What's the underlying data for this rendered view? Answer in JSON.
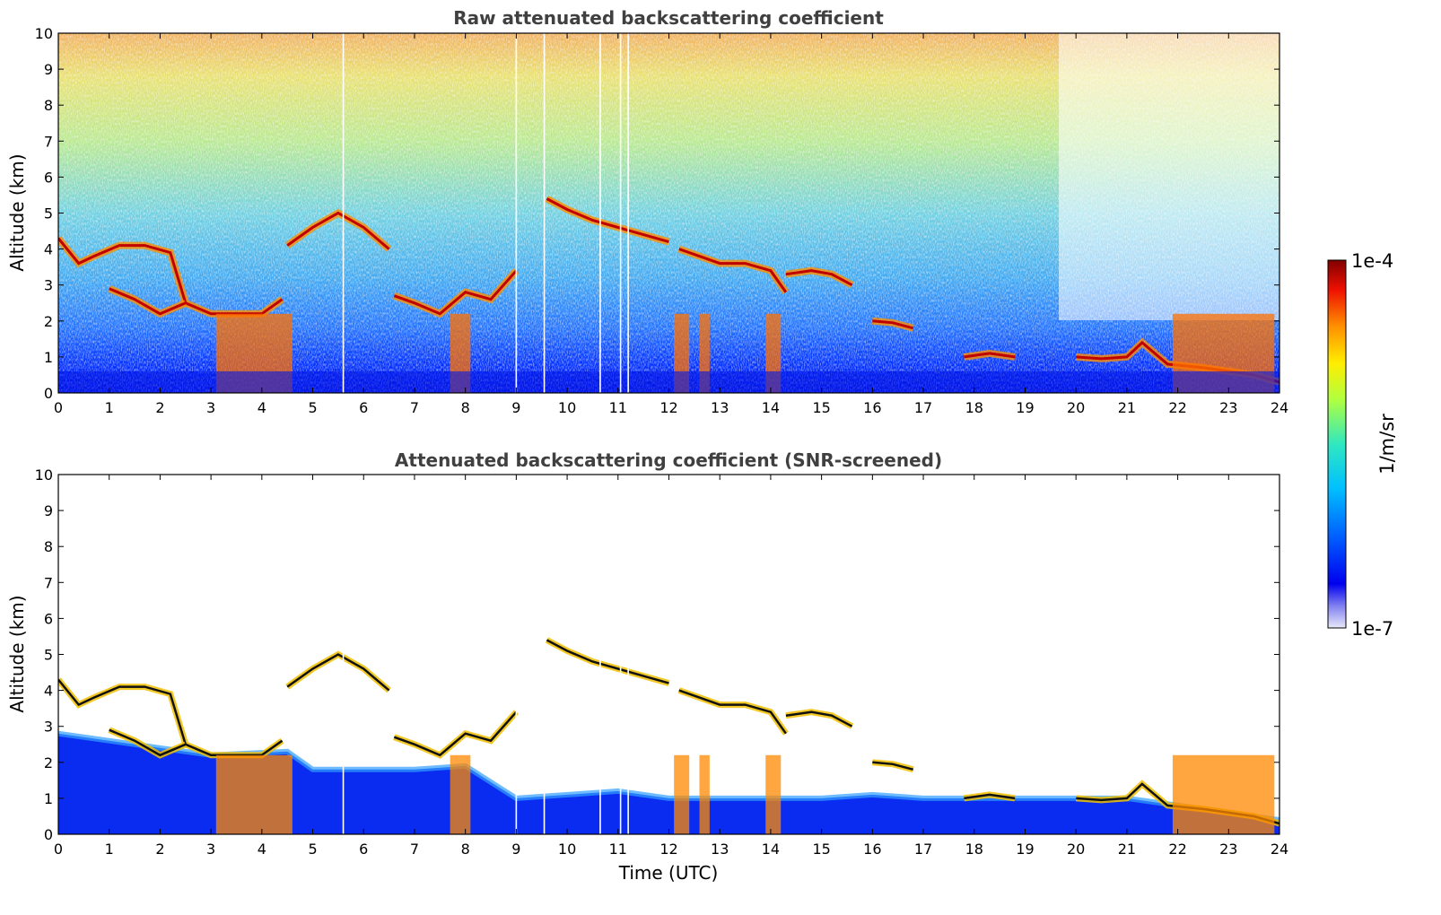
{
  "chart_data": [
    {
      "type": "heatmap",
      "title": "Raw attenuated backscattering coefficient",
      "xlabel": "",
      "ylabel": "Altitude (km)",
      "xlim": [
        0,
        24
      ],
      "ylim": [
        0,
        10
      ],
      "x_ticks": [
        "0",
        "1",
        "2",
        "3",
        "4",
        "5",
        "6",
        "7",
        "8",
        "9",
        "10",
        "11",
        "12",
        "13",
        "14",
        "15",
        "16",
        "17",
        "18",
        "19",
        "20",
        "21",
        "22",
        "23",
        "24"
      ],
      "y_ticks": [
        "0",
        "1",
        "2",
        "3",
        "4",
        "5",
        "6",
        "7",
        "8",
        "9",
        "10"
      ],
      "screened": false,
      "data_gaps_hours": [
        5.6,
        9.0,
        9.55,
        10.65,
        11.05,
        11.2
      ],
      "features": {
        "cloud_base_layers": [
          {
            "t": [
              0.0,
              0.4,
              0.7,
              1.2,
              1.7,
              2.2,
              2.5,
              3.0,
              3.5,
              4.0,
              4.4
            ],
            "alt": [
              4.3,
              3.6,
              3.8,
              4.1,
              4.1,
              3.9,
              2.5,
              2.2,
              2.2,
              2.2,
              2.6
            ]
          },
          {
            "t": [
              1.0,
              1.5,
              2.0,
              2.5
            ],
            "alt": [
              2.9,
              2.6,
              2.2,
              2.5
            ]
          },
          {
            "t": [
              4.5,
              5.0,
              5.5,
              6.0,
              6.5
            ],
            "alt": [
              4.1,
              4.6,
              5.0,
              4.6,
              4.0
            ]
          },
          {
            "t": [
              6.6,
              7.0,
              7.5,
              8.0,
              8.5,
              9.0
            ],
            "alt": [
              2.7,
              2.5,
              2.2,
              2.8,
              2.6,
              3.4
            ]
          },
          {
            "t": [
              9.6,
              10.0,
              10.5,
              11.0,
              11.5,
              12.0
            ],
            "alt": [
              5.4,
              5.1,
              4.8,
              4.6,
              4.4,
              4.2
            ]
          },
          {
            "t": [
              12.2,
              12.6,
              13.0,
              13.5,
              14.0,
              14.3
            ],
            "alt": [
              4.0,
              3.8,
              3.6,
              3.6,
              3.4,
              2.8
            ]
          },
          {
            "t": [
              14.3,
              14.8,
              15.2,
              15.6
            ],
            "alt": [
              3.3,
              3.4,
              3.3,
              3.0
            ]
          },
          {
            "t": [
              16.0,
              16.4,
              16.8
            ],
            "alt": [
              2.0,
              1.95,
              1.8
            ]
          },
          {
            "t": [
              17.8,
              18.3,
              18.8
            ],
            "alt": [
              1.0,
              1.1,
              1.0
            ]
          },
          {
            "t": [
              20.0,
              20.5,
              21.0,
              21.3,
              21.8,
              22.5,
              23.0,
              23.5,
              24.0
            ],
            "alt": [
              1.0,
              0.95,
              1.0,
              1.4,
              0.8,
              0.7,
              0.6,
              0.5,
              0.3
            ]
          }
        ],
        "precipitation_streaks_hours": [
          [
            3.1,
            4.6
          ],
          [
            7.7,
            8.1
          ],
          [
            12.1,
            12.4
          ],
          [
            12.6,
            12.8
          ],
          [
            13.9,
            14.2
          ],
          [
            21.9,
            23.9
          ]
        ]
      }
    },
    {
      "type": "heatmap",
      "title": "Attenuated backscattering coefficient (SNR-screened)",
      "xlabel": "Time (UTC)",
      "ylabel": "Altitude (km)",
      "xlim": [
        0,
        24
      ],
      "ylim": [
        0,
        10
      ],
      "x_ticks": [
        "0",
        "1",
        "2",
        "3",
        "4",
        "5",
        "6",
        "7",
        "8",
        "9",
        "10",
        "11",
        "12",
        "13",
        "14",
        "15",
        "16",
        "17",
        "18",
        "19",
        "20",
        "21",
        "22",
        "23",
        "24"
      ],
      "y_ticks": [
        "0",
        "1",
        "2",
        "3",
        "4",
        "5",
        "6",
        "7",
        "8",
        "9",
        "10"
      ],
      "screened": true,
      "data_gaps_hours": [
        5.6,
        9.0,
        9.55,
        10.65,
        11.05,
        11.2
      ],
      "features": {
        "boundary_layer_top_km": [
          {
            "t": [
              0,
              2,
              3,
              4.5,
              5,
              7,
              8,
              9,
              11,
              12,
              14,
              15,
              16,
              17,
              18,
              19,
              20,
              21,
              22,
              23,
              24
            ],
            "alt": [
              2.8,
              2.4,
              2.2,
              2.3,
              1.8,
              1.8,
              1.9,
              1.0,
              1.2,
              1.0,
              1.0,
              1.0,
              1.1,
              1.0,
              1.0,
              1.0,
              1.0,
              1.0,
              0.8,
              0.6,
              0.4
            ]
          }
        ]
      }
    }
  ],
  "colorbar": {
    "label": "1/m/sr",
    "max_label": "1e-4",
    "min_label": "1e-7",
    "scale": "log",
    "range": [
      1e-07,
      0.0001
    ],
    "colormap": "jet"
  }
}
